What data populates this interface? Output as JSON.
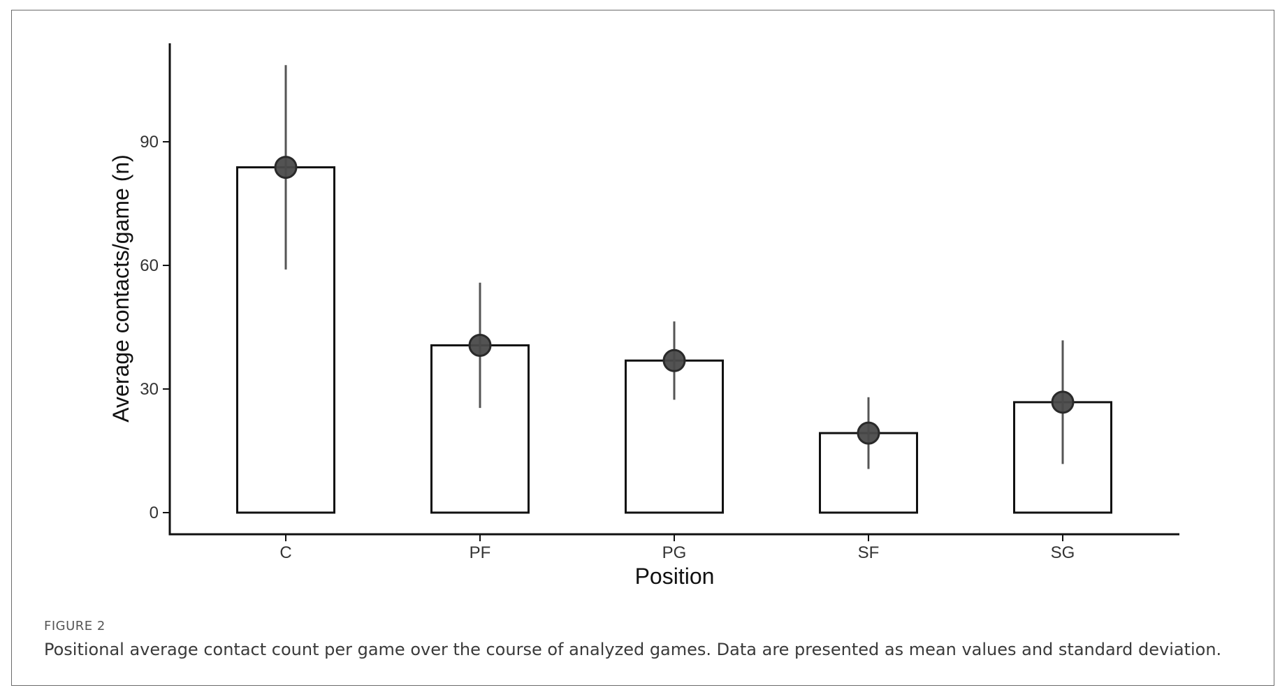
{
  "figure": {
    "label": "FIGURE 2",
    "caption": "Positional average contact count per game over the course of analyzed games. Data are presented as mean values and standard deviation."
  },
  "chart_data": {
    "type": "bar",
    "categories": [
      "C",
      "PF",
      "PG",
      "SF",
      "SG"
    ],
    "values": [
      83.8,
      40.6,
      36.9,
      19.3,
      26.8
    ],
    "sd": [
      24.8,
      15.2,
      9.5,
      8.7,
      15.0
    ],
    "xlabel": "Position",
    "ylabel": "Average contacts/game (n)",
    "ylim": [
      -4.5,
      114
    ],
    "yticks": [
      0,
      30,
      60,
      90
    ],
    "grid": false,
    "legend": "none",
    "colors": {
      "bar_fill": "#ffffff",
      "bar_stroke": "#111111",
      "point": "#4a4a4a",
      "errorbar": "#555555"
    }
  }
}
